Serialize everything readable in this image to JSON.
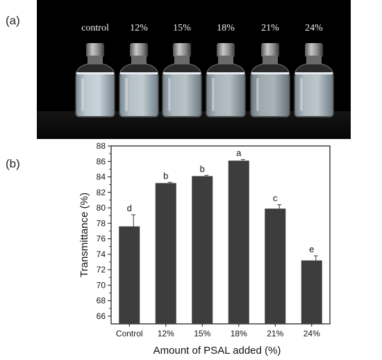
{
  "panel_a": {
    "label": "(a)",
    "samples": [
      "control",
      "12%",
      "15%",
      "18%",
      "21%",
      "24%"
    ]
  },
  "panel_b": {
    "label": "(b)"
  },
  "chart_data": {
    "type": "bar",
    "categories": [
      "Control",
      "12%",
      "15%",
      "18%",
      "21%",
      "24%"
    ],
    "values": [
      77.6,
      83.2,
      84.1,
      86.1,
      79.9,
      73.2
    ],
    "errors": [
      1.5,
      0.1,
      0.1,
      0.15,
      0.5,
      0.6
    ],
    "significance": [
      "d",
      "b",
      "b",
      "a",
      "c",
      "e"
    ],
    "xlabel": "Amount of PSAL added (%)",
    "ylabel": "Transmittance (%)",
    "ylim": [
      65,
      88
    ],
    "yticks": [
      66,
      68,
      70,
      72,
      74,
      76,
      78,
      80,
      82,
      84,
      86,
      88
    ],
    "bar_color": "#3d3d3d",
    "grid": false
  }
}
